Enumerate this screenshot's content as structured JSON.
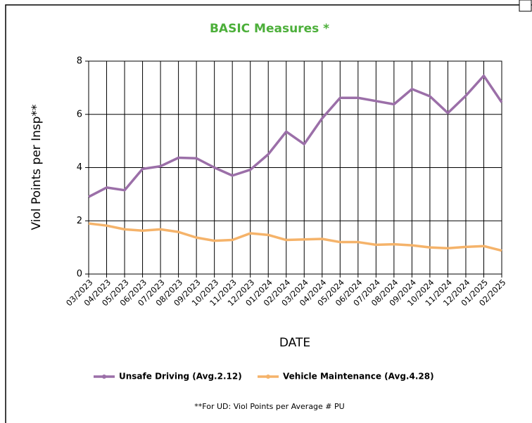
{
  "chart_data": {
    "type": "line",
    "title": "BASIC Measures *",
    "y_label": "Viol Points per Insp**",
    "x_label": "DATE",
    "footnote": "**For UD: Viol Points per Average # PU",
    "categories": [
      "03/2023",
      "04/2023",
      "05/2023",
      "06/2023",
      "07/2023",
      "08/2023",
      "09/2023",
      "10/2023",
      "11/2023",
      "12/2023",
      "01/2024",
      "02/2024",
      "03/2024",
      "04/2024",
      "05/2024",
      "06/2024",
      "07/2024",
      "08/2024",
      "09/2024",
      "10/2024",
      "11/2024",
      "12/2024",
      "01/2025",
      "02/2025"
    ],
    "series": [
      {
        "name": "Unsafe Driving (Avg.2.12)",
        "color": "#9b6fa8",
        "values": [
          2.9,
          3.25,
          3.15,
          3.95,
          4.05,
          4.37,
          4.35,
          4.0,
          3.7,
          3.92,
          4.5,
          5.35,
          4.88,
          5.85,
          6.62,
          6.62,
          6.5,
          6.38,
          6.95,
          6.68,
          6.05,
          6.7,
          7.45,
          6.45
        ]
      },
      {
        "name": "Vehicle Maintenance (Avg.4.28)",
        "color": "#f5b36a",
        "values": [
          1.9,
          1.82,
          1.68,
          1.63,
          1.68,
          1.58,
          1.37,
          1.25,
          1.28,
          1.53,
          1.47,
          1.28,
          1.3,
          1.32,
          1.2,
          1.2,
          1.1,
          1.12,
          1.08,
          1.0,
          0.97,
          1.02,
          1.05,
          0.88
        ]
      }
    ],
    "ylim": [
      0,
      8
    ],
    "yticks": [
      0,
      2,
      4,
      6,
      8
    ],
    "grid": true
  }
}
